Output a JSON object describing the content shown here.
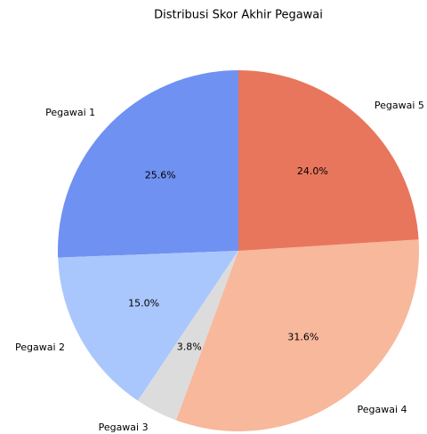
{
  "chart_data": {
    "type": "pie",
    "title": "Distribusi Skor Akhir Pegawai",
    "categories": [
      "Pegawai 1",
      "Pegawai 2",
      "Pegawai 3",
      "Pegawai 4",
      "Pegawai 5"
    ],
    "values": [
      25.6,
      15.0,
      3.8,
      31.6,
      24.0
    ],
    "value_labels": [
      "25.6%",
      "15.0%",
      "3.8%",
      "31.6%",
      "24.0%"
    ],
    "colors": [
      "#6f91f2",
      "#aac7fd",
      "#dddcdc",
      "#f7b89c",
      "#e8765c"
    ]
  }
}
